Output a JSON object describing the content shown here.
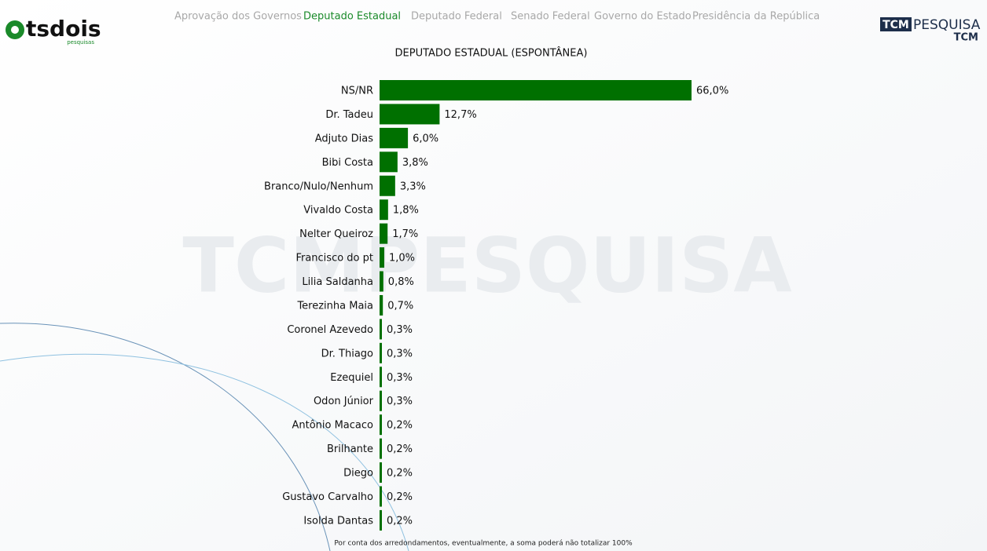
{
  "nav": [
    "Aprovação dos Governos",
    "Deputado Estadual",
    "Deputado Federal",
    "Senado Federal",
    "Governo do Estado",
    "Presidência da República"
  ],
  "logo_left": {
    "name": "tsdois",
    "tagline": "pesquisas"
  },
  "logo_right": {
    "brand": "TCM",
    "word": "PESQUISA",
    "sub": "TCM"
  },
  "watermark": "TCMPESQUISA",
  "chart_data": {
    "type": "bar",
    "orientation": "horizontal",
    "title": "DEPUTADO ESTADUAL (ESPONTÂNEA)",
    "categories": [
      "NS/NR",
      "Dr. Tadeu",
      "Adjuto Dias",
      "Bibi Costa",
      "Branco/Nulo/Nenhum",
      "Vivaldo Costa",
      "Nelter Queiroz",
      "Francisco do pt",
      "Lilia Saldanha",
      "Terezinha Maia",
      "Coronel Azevedo",
      "Dr. Thiago",
      "Ezequiel",
      "Odon Júnior",
      "Antônio Macaco",
      "Brilhante",
      "Diego",
      "Gustavo Carvalho",
      "Isolda Dantas"
    ],
    "values": [
      66.0,
      12.7,
      6.0,
      3.8,
      3.3,
      1.8,
      1.7,
      1.0,
      0.8,
      0.7,
      0.3,
      0.3,
      0.3,
      0.3,
      0.2,
      0.2,
      0.2,
      0.2,
      0.2
    ],
    "value_labels": [
      "66,0%",
      "12,7%",
      "6,0%",
      "3,8%",
      "3,3%",
      "1,8%",
      "1,7%",
      "1,0%",
      "0,8%",
      "0,7%",
      "0,3%",
      "0,3%",
      "0,3%",
      "0,3%",
      "0,2%",
      "0,2%",
      "0,2%",
      "0,2%",
      "0,2%"
    ],
    "color": "#007000",
    "footnote": "Por conta dos arredondamentos, eventualmente, a soma poderá não totalizar 100%"
  }
}
